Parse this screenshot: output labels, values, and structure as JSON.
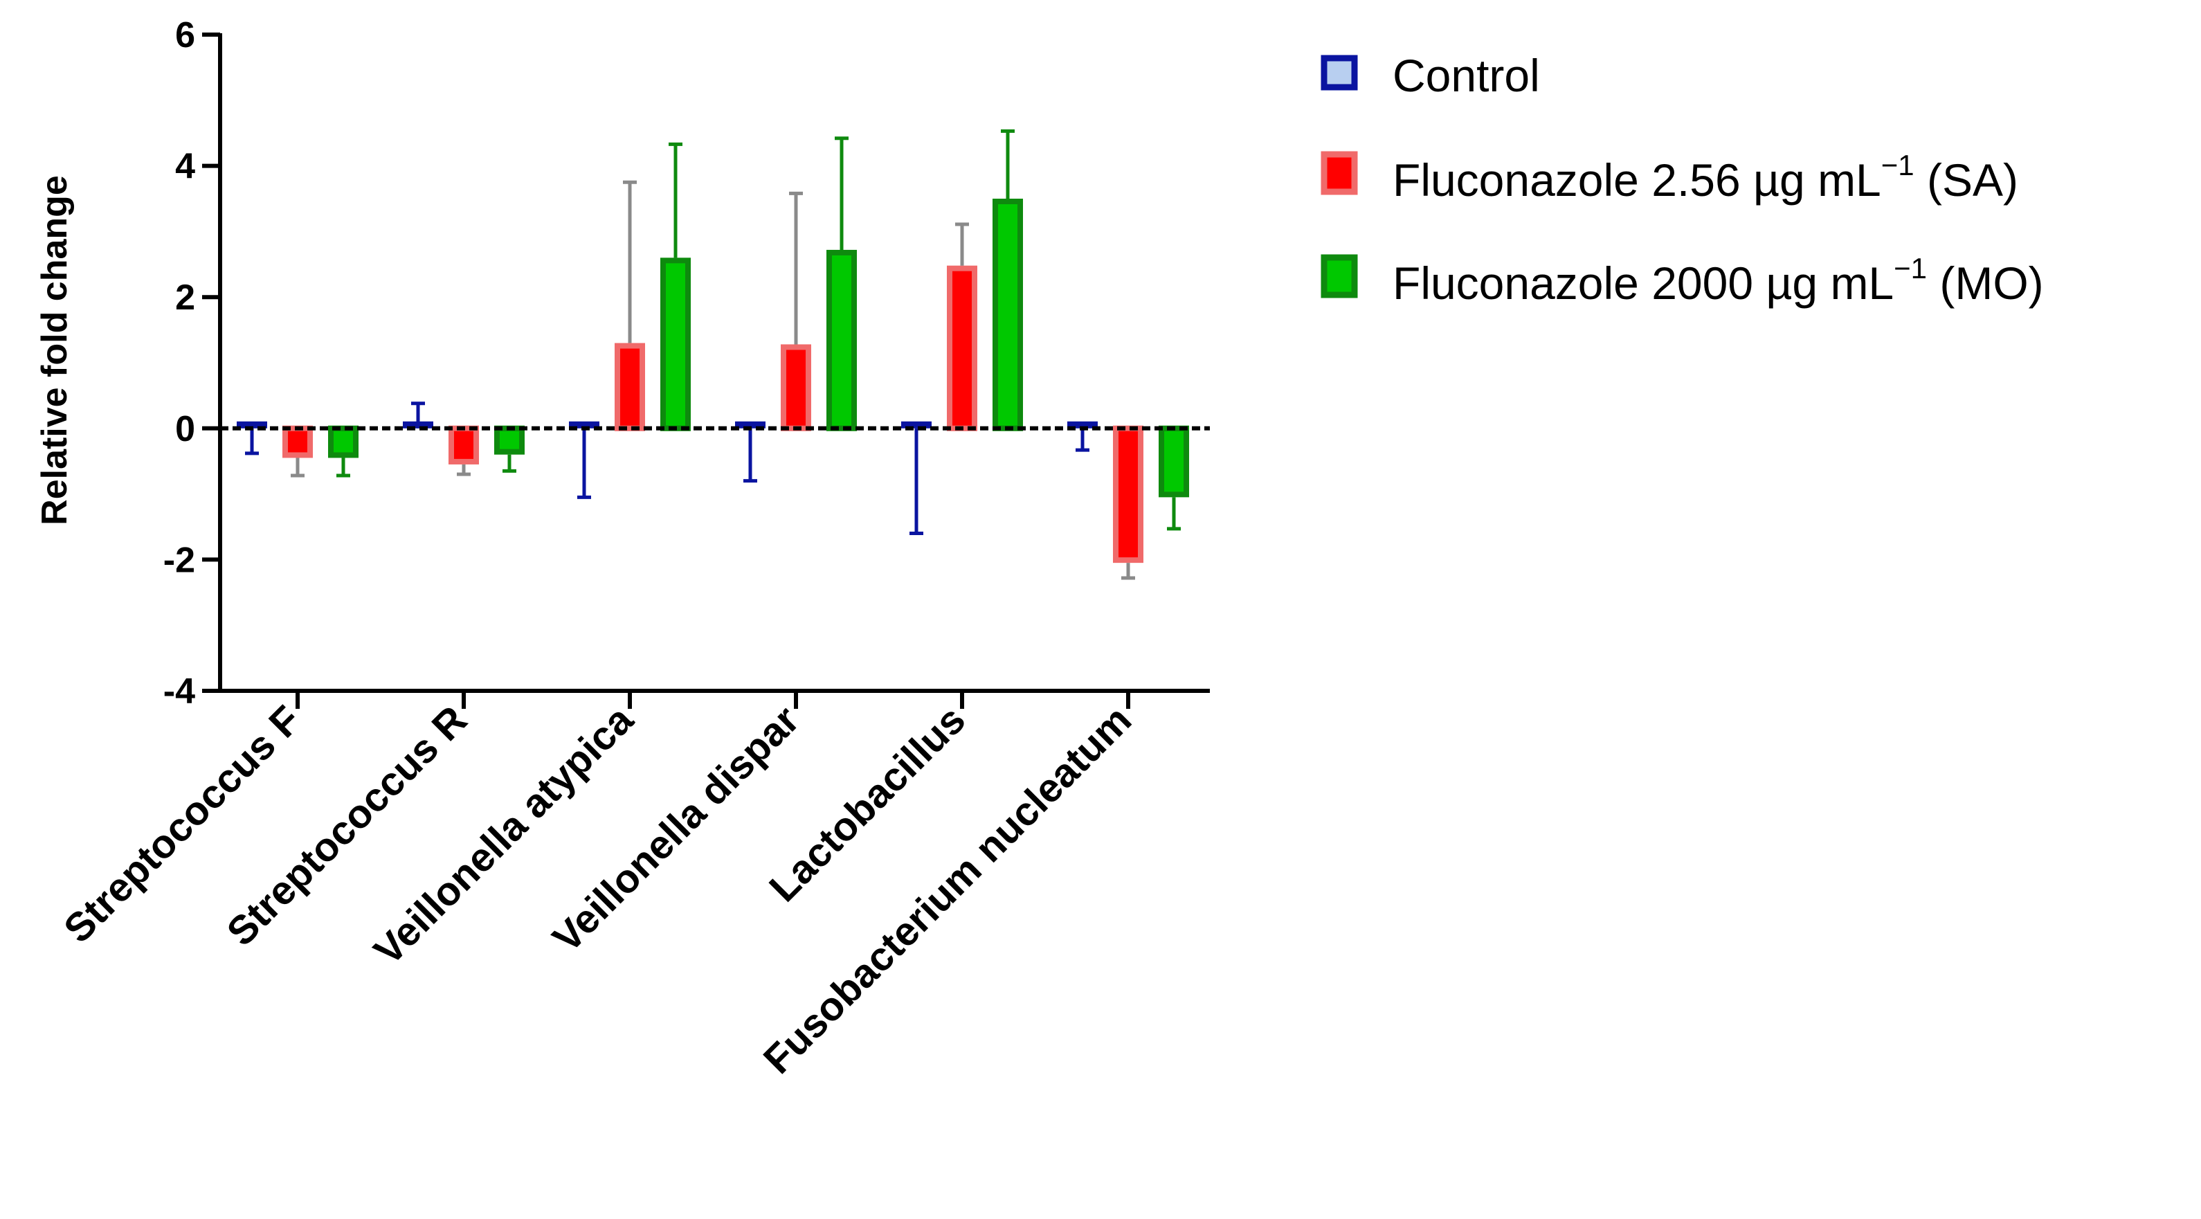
{
  "chart_data": {
    "type": "bar",
    "title": "",
    "xlabel": "",
    "ylabel": "Relative fold change",
    "ylim": [
      -4,
      6
    ],
    "yticks": [
      6,
      4,
      2,
      0,
      -2,
      -4
    ],
    "grid": false,
    "legend_position": "top-right",
    "categories": [
      "Streptococcus F",
      "Streptococcus R",
      "Veillonella atypica",
      "Veillonella dispar",
      "Lactobacillus",
      "Fusobacterium nucleatum"
    ],
    "series": [
      {
        "name": "Control",
        "fill": "#b8cff0",
        "stroke": "#0a14a0",
        "values": [
          0.0,
          0.0,
          0.0,
          0.0,
          0.0,
          0.0
        ],
        "error": [
          0.38,
          0.38,
          1.05,
          0.8,
          1.6,
          0.33
        ]
      },
      {
        "name": "Fluconazole 2.56 µg mL⁻¹ (SA)",
        "fill": "#ff0000",
        "stroke": "#f06a6a",
        "error_color": "#8a8a8a",
        "values": [
          -0.45,
          -0.55,
          1.3,
          1.28,
          2.48,
          -2.05
        ],
        "error": [
          0.27,
          0.15,
          2.45,
          2.3,
          0.63,
          0.23
        ]
      },
      {
        "name": "Fluconazole 2000 µg mL⁻¹ (MO)",
        "fill": "#00c800",
        "stroke": "#0e8a0e",
        "values": [
          -0.45,
          -0.4,
          2.6,
          2.72,
          3.5,
          -1.05
        ],
        "error": [
          0.27,
          0.25,
          1.73,
          1.7,
          1.03,
          0.48
        ]
      }
    ]
  },
  "legend": {
    "items": [
      {
        "main": "Control",
        "sup": "",
        "tail": ""
      },
      {
        "main": "Fluconazole 2.56 µg mL",
        "sup": "−1",
        "tail": " (SA)"
      },
      {
        "main": "Fluconazole 2000 µg mL",
        "sup": "−1",
        "tail": " (MO)"
      }
    ]
  }
}
